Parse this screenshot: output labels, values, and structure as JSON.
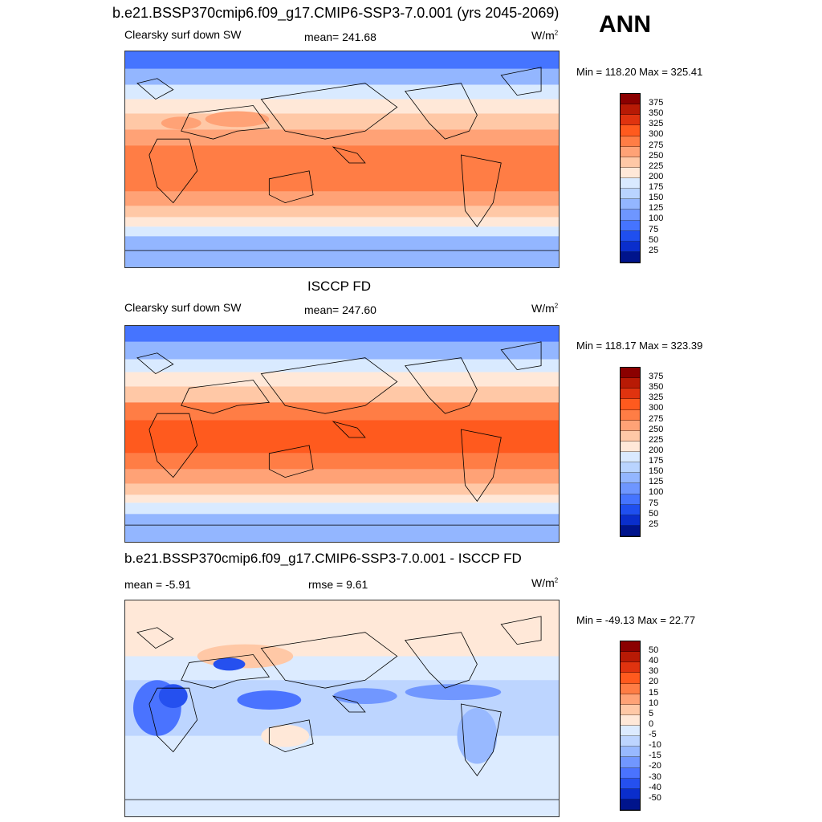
{
  "header": {
    "title": "b.e21.BSSP370cmip6.f09_g17.CMIP6-SSP3-7.0.001 (yrs 2045-2069)",
    "season": "ANN"
  },
  "panels": [
    {
      "title": "",
      "left_label": "Clearsky surf down SW",
      "center_label": "mean= 241.68",
      "units": "W/m",
      "units_sup": "2",
      "minmax": "Min = 118.20 Max = 325.41",
      "colorbar_labels": [
        "375",
        "350",
        "325",
        "300",
        "275",
        "250",
        "225",
        "200",
        "175",
        "150",
        "125",
        "100",
        "75",
        "50",
        "25"
      ]
    },
    {
      "title": "ISCCP FD",
      "left_label": "Clearsky surf down SW",
      "center_label": "mean= 247.60",
      "units": "W/m",
      "units_sup": "2",
      "minmax": "Min = 118.17 Max = 323.39",
      "colorbar_labels": [
        "375",
        "350",
        "325",
        "300",
        "275",
        "250",
        "225",
        "200",
        "175",
        "150",
        "125",
        "100",
        "75",
        "50",
        "25"
      ]
    },
    {
      "title": "b.e21.BSSP370cmip6.f09_g17.CMIP6-SSP3-7.0.001 - ISCCP FD",
      "left_label": "mean =  -5.91",
      "center_label": "rmse =   9.61",
      "units": "W/m",
      "units_sup": "2",
      "minmax": "Min = -49.13 Max =  22.77",
      "colorbar_labels": [
        "50",
        "40",
        "30",
        "20",
        "15",
        "10",
        "5",
        "0",
        "-5",
        "-10",
        "-15",
        "-20",
        "-30",
        "-40",
        "-50"
      ]
    }
  ],
  "colors": {
    "abs_scale": [
      "#8b0000",
      "#b81a05",
      "#e0330f",
      "#ff5a1e",
      "#ff7d45",
      "#ffa276",
      "#ffc8a6",
      "#ffe8d8",
      "#d9eaff",
      "#b9d4ff",
      "#93b6ff",
      "#6e96ff",
      "#4574ff",
      "#1f4fef",
      "#0a2ecc",
      "#00148c"
    ],
    "diff_scale": [
      "#8b0000",
      "#b81a05",
      "#e0330f",
      "#ff5a1e",
      "#ff7d45",
      "#ffa276",
      "#ffc8a6",
      "#ffe8d8",
      "#dcebff",
      "#bdd5ff",
      "#98b9ff",
      "#7197ff",
      "#4a73ff",
      "#2550ef",
      "#0a2ecc",
      "#00148c"
    ]
  }
}
